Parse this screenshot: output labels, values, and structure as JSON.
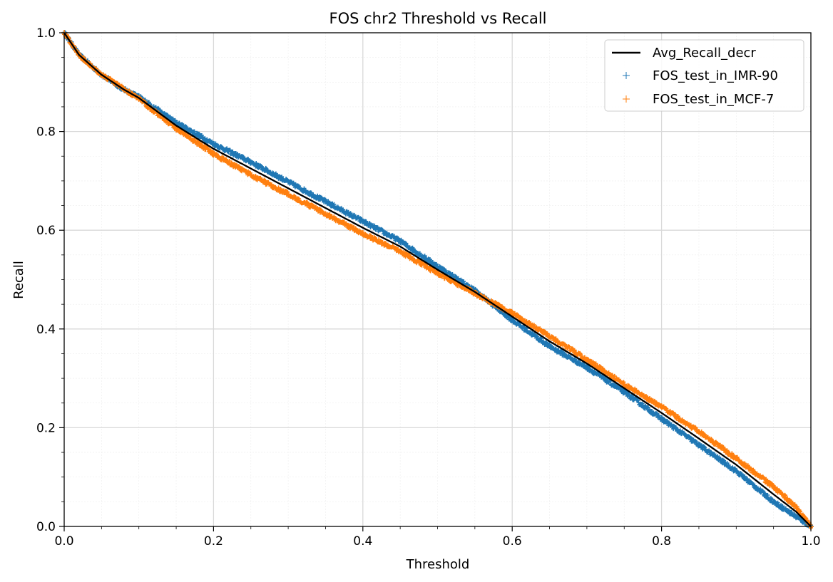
{
  "chart_data": {
    "type": "line",
    "title": "FOS chr2 Threshold vs Recall",
    "xlabel": "Threshold",
    "ylabel": "Recall",
    "xlim": [
      0,
      1
    ],
    "ylim": [
      0,
      1
    ],
    "x_ticks": [
      "0.0",
      "0.2",
      "0.4",
      "0.6",
      "0.8",
      "1.0"
    ],
    "y_ticks": [
      "0.0",
      "0.2",
      "0.4",
      "0.6",
      "0.8",
      "1.0"
    ],
    "grid": true,
    "minor_grid": true,
    "legend_position": "top-right",
    "series": [
      {
        "name": "Avg_Recall_decr",
        "style": "line",
        "color": "#000000",
        "x": [
          0,
          0.02,
          0.05,
          0.08,
          0.1,
          0.15,
          0.2,
          0.25,
          0.3,
          0.35,
          0.4,
          0.45,
          0.5,
          0.55,
          0.6,
          0.65,
          0.7,
          0.75,
          0.8,
          0.85,
          0.9,
          0.95,
          0.98,
          1.0
        ],
        "y": [
          1.0,
          0.955,
          0.915,
          0.885,
          0.868,
          0.812,
          0.765,
          0.725,
          0.685,
          0.645,
          0.605,
          0.567,
          0.52,
          0.475,
          0.425,
          0.375,
          0.33,
          0.28,
          0.23,
          0.178,
          0.125,
          0.065,
          0.03,
          0.0
        ]
      },
      {
        "name": "FOS_test_in_IMR-90",
        "style": "scatter",
        "marker": "+",
        "color": "#1f77b4",
        "x": [
          0,
          0.02,
          0.05,
          0.08,
          0.1,
          0.15,
          0.2,
          0.25,
          0.3,
          0.35,
          0.4,
          0.45,
          0.5,
          0.55,
          0.6,
          0.65,
          0.7,
          0.75,
          0.8,
          0.85,
          0.9,
          0.95,
          0.98,
          1.0
        ],
        "y": [
          1.0,
          0.955,
          0.915,
          0.885,
          0.87,
          0.818,
          0.775,
          0.738,
          0.698,
          0.658,
          0.618,
          0.578,
          0.527,
          0.478,
          0.418,
          0.365,
          0.322,
          0.272,
          0.218,
          0.165,
          0.112,
          0.05,
          0.02,
          0.0
        ]
      },
      {
        "name": "FOS_test_in_MCF-7",
        "style": "scatter",
        "marker": "+",
        "color": "#ff7f0e",
        "x": [
          0,
          0.02,
          0.05,
          0.08,
          0.1,
          0.15,
          0.2,
          0.25,
          0.3,
          0.35,
          0.4,
          0.45,
          0.5,
          0.55,
          0.6,
          0.65,
          0.7,
          0.75,
          0.8,
          0.85,
          0.9,
          0.95,
          0.98,
          1.0
        ],
        "y": [
          1.0,
          0.955,
          0.915,
          0.886,
          0.866,
          0.806,
          0.755,
          0.712,
          0.673,
          0.633,
          0.593,
          0.557,
          0.513,
          0.472,
          0.432,
          0.385,
          0.338,
          0.288,
          0.242,
          0.192,
          0.138,
          0.08,
          0.04,
          0.0
        ]
      }
    ]
  }
}
